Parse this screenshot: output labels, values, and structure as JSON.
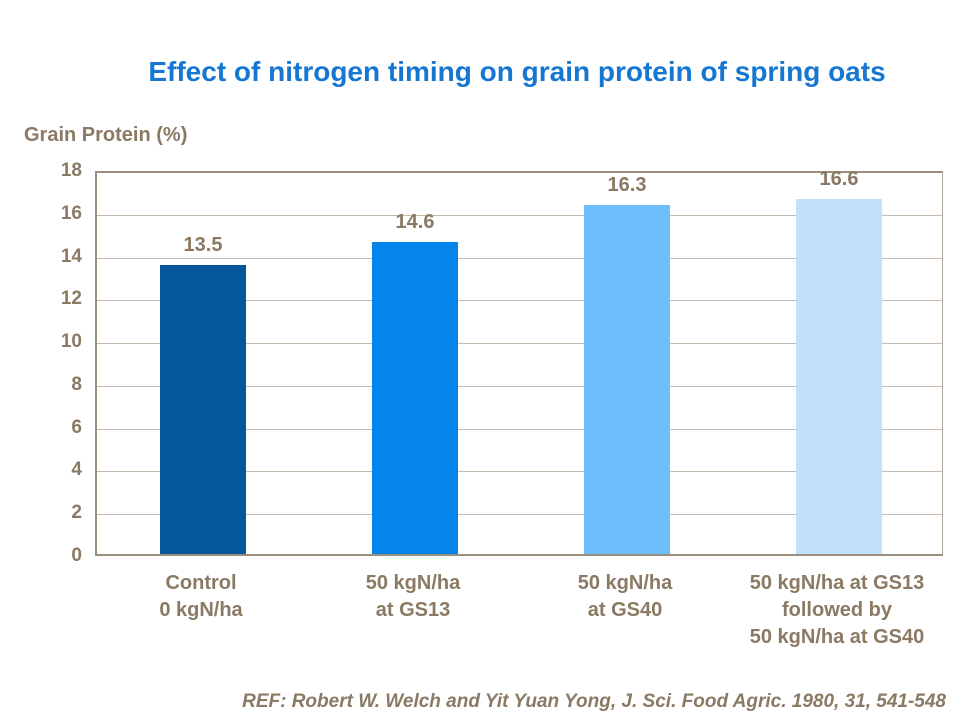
{
  "slide": {
    "title": "Effect of nitrogen timing on grain protein of spring oats",
    "reference": "REF: Robert W. Welch and Yit Yuan Yong, J. Sci. Food Agric. 1980, 31, 541-548"
  },
  "chart_data": {
    "type": "bar",
    "title": "Effect of nitrogen timing on grain protein of spring oats",
    "ylabel": "Grain Protein (%)",
    "xlabel": "",
    "categories": [
      "Control\n0 kgN/ha",
      "50 kgN/ha\nat GS13",
      "50 kgN/ha\nat GS40",
      "50 kgN/ha at GS13\nfollowed by\n50 kgN/ha at GS40"
    ],
    "values": [
      13.5,
      14.6,
      16.3,
      16.6
    ],
    "data_labels": [
      "13.5",
      "14.6",
      "16.3",
      "16.6"
    ],
    "bar_colors": [
      "#05579C",
      "#0584E9",
      "#6CBFFB",
      "#C2E0FA"
    ],
    "ylim": [
      0,
      18
    ],
    "yticks": [
      0,
      2,
      4,
      6,
      8,
      10,
      12,
      14,
      16,
      18
    ],
    "grid": true,
    "legend": "none"
  },
  "colors": {
    "title_text": "#1577D1",
    "body_text": "#8A7A64",
    "gridline": "#C3BBAE",
    "plot_border": "#9A8E7E",
    "background": "#FFFFFF"
  }
}
